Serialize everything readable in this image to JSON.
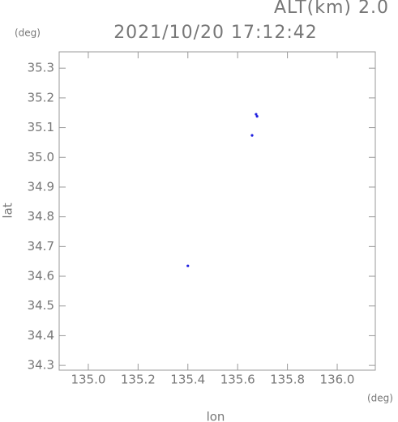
{
  "chart_data": {
    "type": "scatter",
    "annotation": "ALT(km) 2.0",
    "title": "2021/10/20 17:12:42",
    "y_unit": "(deg)",
    "x_unit": "(deg)",
    "xlabel": "lon",
    "ylabel": "lat",
    "color": "#2020e0",
    "x": [
      135.674,
      135.678,
      135.658,
      135.4
    ],
    "y": [
      35.145,
      35.138,
      35.074,
      34.635
    ],
    "xlim": [
      134.883,
      136.153
    ],
    "ylim": [
      34.284,
      35.355
    ],
    "xticks": [
      {
        "value": 135.0,
        "label": "135.0"
      },
      135.2,
      135.4,
      135.6,
      135.8,
      {
        "value": 136.0,
        "label": "136.0"
      }
    ],
    "yticks": [
      34.3,
      34.4,
      34.5,
      34.6,
      34.7,
      34.8,
      34.9,
      {
        "value": 35.0,
        "label": "35.0"
      },
      35.1,
      35.2,
      35.3
    ]
  }
}
